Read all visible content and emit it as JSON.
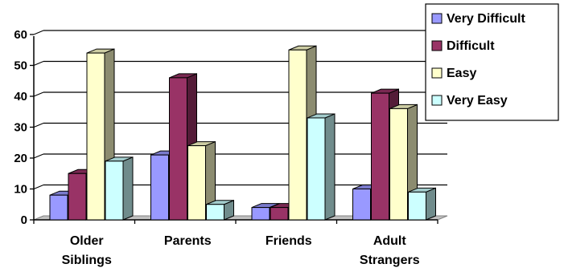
{
  "chart_data": {
    "type": "bar",
    "title": "",
    "xlabel": "",
    "ylabel": "",
    "ylim": [
      0,
      60
    ],
    "yticks": [
      0,
      10,
      20,
      30,
      40,
      50,
      60
    ],
    "grid": true,
    "legend_position": "top-right",
    "three_d": true,
    "categories": [
      [
        "Older",
        "Siblings"
      ],
      [
        "Parents"
      ],
      [
        "Friends"
      ],
      [
        "Adult",
        "Strangers"
      ]
    ],
    "series": [
      {
        "name": "Very Difficult",
        "color": "#9999FF",
        "values": [
          8,
          21,
          4,
          10
        ]
      },
      {
        "name": "Difficult",
        "color": "#993366",
        "values": [
          15,
          46,
          4,
          41
        ]
      },
      {
        "name": "Easy",
        "color": "#FFFFCC",
        "values": [
          54,
          24,
          55,
          36
        ]
      },
      {
        "name": "Very Easy",
        "color": "#CCFFFF",
        "values": [
          19,
          5,
          33,
          9
        ]
      }
    ]
  }
}
